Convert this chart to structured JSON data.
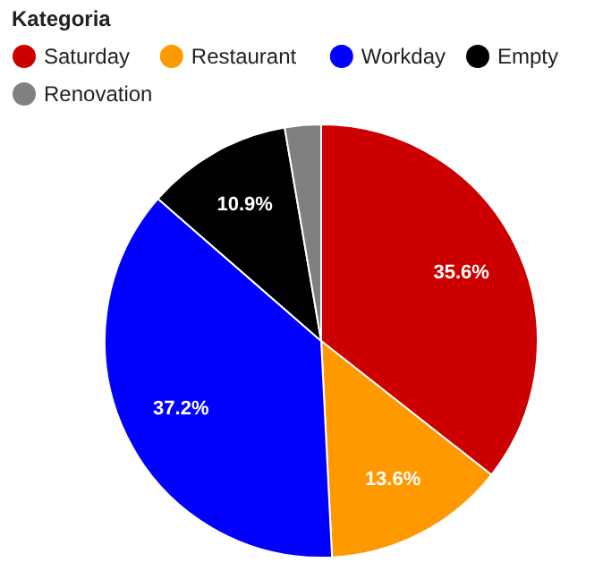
{
  "chart_data": {
    "type": "pie",
    "legend_title": "Kategoria",
    "legend": "top left",
    "categories": [
      "Saturday",
      "Restaurant",
      "Workday",
      "Empty",
      "Renovation"
    ],
    "values": [
      35.6,
      13.6,
      37.2,
      10.9,
      2.7
    ],
    "colors": [
      "#cc0000",
      "#ff9900",
      "#0000ff",
      "#000000",
      "#808080"
    ],
    "value_labels": [
      "35.6%",
      "13.6%",
      "37.2%",
      "10.9%",
      null
    ]
  }
}
